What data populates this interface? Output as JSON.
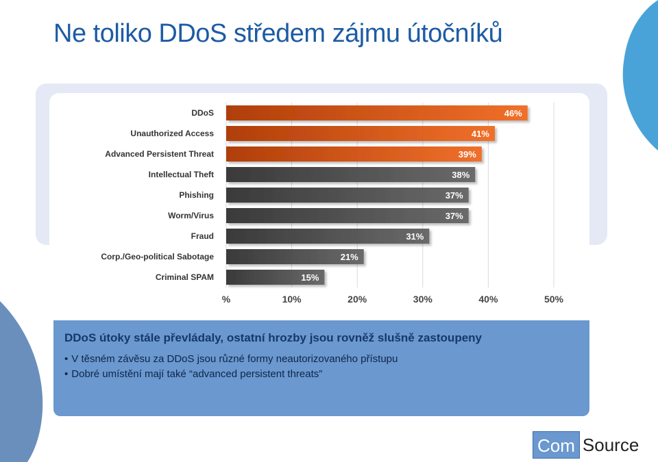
{
  "slide": {
    "title": "Ne toliko DDoS středem zájmu útočníků"
  },
  "info": {
    "heading": "DDoS útoky stále převládaly, ostatní hrozby jsou rovněž slušně zastoupeny",
    "bullets": [
      "V těsném závěsu za DDoS jsou různé formy neautorizovaného přístupu",
      "Dobré umístění mají také “advanced persistent threats”"
    ]
  },
  "logo": {
    "part1": "Com",
    "part2": "Source"
  },
  "colors": {
    "title": "#1d5ba4",
    "accent": "#6a98cf",
    "bar_orange": "#e0601f",
    "bar_gray": "#555555"
  },
  "chart_data": {
    "type": "bar",
    "orientation": "horizontal",
    "categories": [
      "DDoS",
      "Unauthorized Access",
      "Advanced Persistent Threat",
      "Intellectual Theft",
      "Phishing",
      "Worm/Virus",
      "Fraud",
      "Corp./Geo-political Sabotage",
      "Criminal SPAM"
    ],
    "values": [
      46,
      41,
      39,
      38,
      37,
      37,
      31,
      21,
      15
    ],
    "data_labels": [
      "46%",
      "41%",
      "39%",
      "38%",
      "37%",
      "37%",
      "31%",
      "21%",
      "15%"
    ],
    "highlight_count": 3,
    "x_ticks": [
      0,
      10,
      20,
      30,
      40,
      50
    ],
    "x_tick_labels": [
      "%",
      "10%",
      "20%",
      "30%",
      "40%",
      "50%"
    ],
    "xlim": [
      0,
      50
    ],
    "grid": true
  }
}
